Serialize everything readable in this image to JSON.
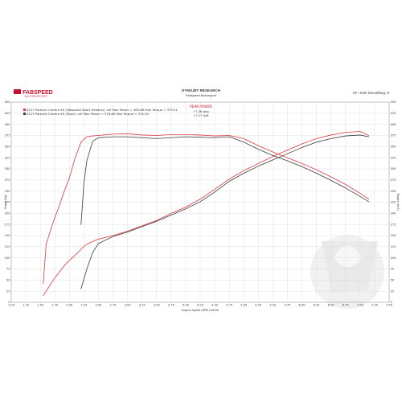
{
  "header": {
    "logo_text": "FABSPEED",
    "logo_subtext": "MOTORSPORT",
    "title": "DYNOJET RESEARCH",
    "subtitle": "Fabspeed Motorsport",
    "correction": "CF: SAE  Smoothing: 5"
  },
  "peak_box": {
    "title": "PEAK POWER",
    "line1": "+7.36 whp",
    "line2": "+7.17 lb/ft"
  },
  "colors": {
    "series_red": "#e0393e",
    "series_dark": "#3a3a3a",
    "grid": "#d9d9d9",
    "brand": "#c8102e"
  },
  "chart_data": {
    "type": "line",
    "xlabel": "Engine Speed (RPM x1000)",
    "ylabel_left": "Power (hp)",
    "ylabel_right": "Torque (lb-ft)",
    "xlim": [
      1.0,
      7.5
    ],
    "ylim_left": [
      0,
      450
    ],
    "ylim_right": [
      0,
      450
    ],
    "x_ticks": [
      "1.00",
      "1.25",
      "1.50",
      "1.75",
      "2.00",
      "2.25",
      "2.50",
      "2.75",
      "3.00",
      "3.25",
      "3.50",
      "3.75",
      "4.00",
      "4.25",
      "4.50",
      "4.75",
      "5.00",
      "5.25",
      "5.50",
      "5.75",
      "6.00",
      "6.25",
      "6.50",
      "6.75",
      "7.00",
      "7.25",
      "7.50"
    ],
    "y_ticks_left": [
      "0",
      "25",
      "50",
      "75",
      "100",
      "125",
      "150",
      "175",
      "200",
      "225",
      "250",
      "275",
      "300",
      "325",
      "350",
      "375",
      "400",
      "425",
      "450"
    ],
    "y_ticks_right": [
      "0",
      "25",
      "50",
      "75",
      "100",
      "125",
      "150",
      "175",
      "200",
      "225",
      "250",
      "275",
      "300",
      "325",
      "350",
      "375",
      "400",
      "425",
      "450"
    ],
    "legend": [
      "2017 Porsche Carrera 4S (Fabspeed Sport Headers) .drf Max Power = 383.86    Max Torque = 379.31",
      "2017 Porsche Carrera 4S (Stock) .drf Max Power = 376.80    Max Torque = 372.50"
    ],
    "series": [
      {
        "name": "2017 Porsche Carrera 4S (Fabspeed Sport Headers) Power",
        "color": "#e0393e",
        "x": [
          1.55,
          1.65,
          1.75,
          1.85,
          1.95,
          2.05,
          2.15,
          2.25,
          2.35,
          2.5,
          2.75,
          3.0,
          3.25,
          3.5,
          3.75,
          4.0,
          4.25,
          4.5,
          4.75,
          5.0,
          5.25,
          5.5,
          5.75,
          6.0,
          6.25,
          6.5,
          6.75,
          7.0,
          7.15
        ],
        "y": [
          15,
          35,
          55,
          72,
          88,
          100,
          112,
          126,
          134,
          142,
          150,
          160,
          172,
          184,
          200,
          214,
          232,
          254,
          277,
          296,
          312,
          328,
          342,
          356,
          368,
          376,
          382,
          384,
          375
        ]
      },
      {
        "name": "2017 Porsche Carrera 4S (Stock) Power",
        "color": "#3a3a3a",
        "x": [
          2.2,
          2.3,
          2.4,
          2.5,
          2.75,
          3.0,
          3.25,
          3.5,
          3.75,
          4.0,
          4.25,
          4.5,
          4.75,
          5.0,
          5.25,
          5.5,
          5.75,
          6.0,
          6.25,
          6.5,
          6.75,
          7.0,
          7.15
        ],
        "y": [
          30,
          75,
          112,
          132,
          148,
          158,
          170,
          182,
          196,
          210,
          226,
          248,
          272,
          290,
          306,
          320,
          334,
          348,
          360,
          368,
          374,
          376,
          372
        ]
      },
      {
        "name": "2017 Porsche Carrera 4S (Fabspeed Sport Headers) Torque",
        "color": "#e0393e",
        "x": [
          1.55,
          1.6,
          1.7,
          1.8,
          1.9,
          2.0,
          2.1,
          2.2,
          2.3,
          2.4,
          2.5,
          2.75,
          3.0,
          3.25,
          3.5,
          3.75,
          4.0,
          4.25,
          4.5,
          4.75,
          5.0,
          5.25,
          5.5,
          5.75,
          6.0,
          6.25,
          6.5,
          6.75,
          7.0,
          7.15
        ],
        "y": [
          42,
          130,
          172,
          208,
          245,
          280,
          325,
          360,
          372,
          374,
          375,
          378,
          379,
          376,
          375,
          377,
          377,
          376,
          374,
          375,
          368,
          352,
          338,
          325,
          312,
          298,
          282,
          265,
          245,
          232
        ]
      },
      {
        "name": "2017 Porsche Carrera 4S (Stock) Torque",
        "color": "#3a3a3a",
        "x": [
          2.2,
          2.25,
          2.3,
          2.4,
          2.5,
          2.75,
          3.0,
          3.25,
          3.5,
          3.75,
          4.0,
          4.25,
          4.5,
          4.75,
          5.0,
          5.25,
          5.5,
          5.75,
          6.0,
          6.25,
          6.5,
          6.75,
          7.0,
          7.15
        ],
        "y": [
          175,
          268,
          318,
          362,
          370,
          372,
          372,
          370,
          368,
          370,
          372,
          371,
          370,
          372,
          360,
          344,
          330,
          318,
          305,
          290,
          274,
          257,
          238,
          226
        ]
      }
    ]
  }
}
